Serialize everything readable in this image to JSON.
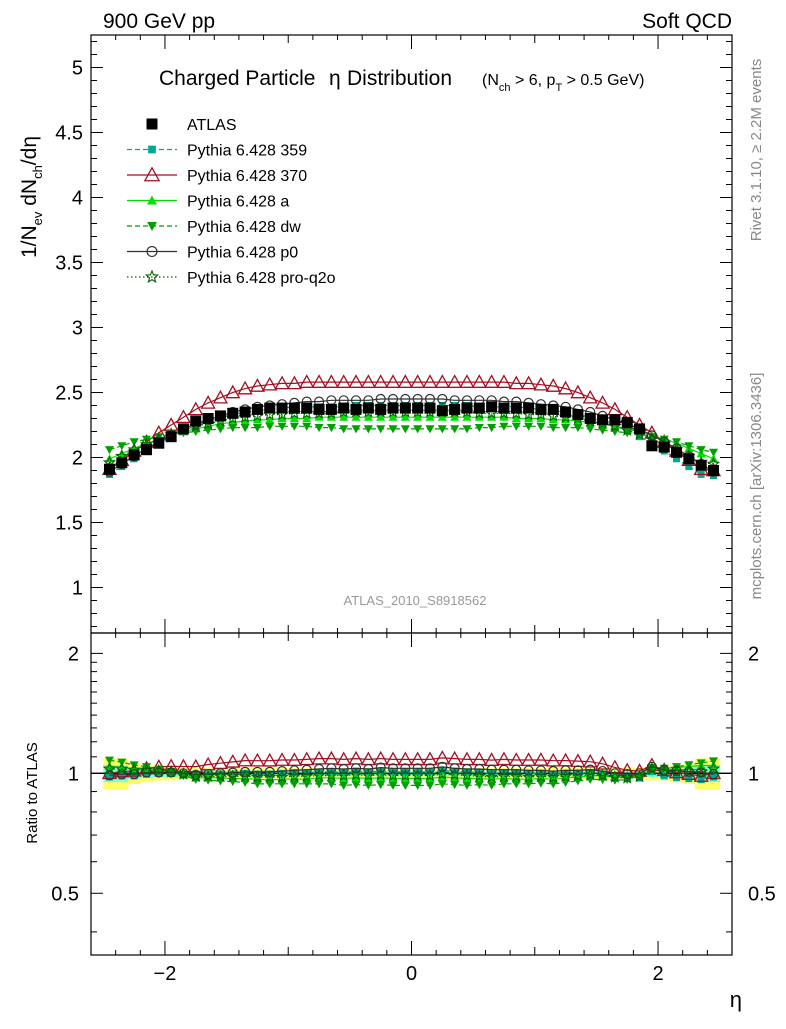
{
  "header": {
    "left": "900 GeV pp",
    "right": "Soft QCD"
  },
  "side": {
    "rivet": "Rivet 3.1.10, ≥ 2.2M events",
    "mcplots": "mcplots.cern.ch [arXiv:1306.3436]"
  },
  "chart_data": [
    {
      "type": "scatter",
      "panel": "main",
      "title_main": "Charged Particle",
      "title_eta": "η",
      "title_rest": "Distribution",
      "title_cut": "(N_ch > 6, p_T > 0.5 GeV)",
      "ylabel": "1/N_ev dN_ch/dη",
      "analysis_label": "ATLAS_2010_S8918562",
      "xlim": [
        -2.6,
        2.6
      ],
      "ylim": [
        0.65,
        5.25
      ],
      "y_ticks": [
        1,
        1.5,
        2,
        2.5,
        3,
        3.5,
        4,
        4.5,
        5
      ],
      "y_tick_labels": [
        "1",
        "1.5",
        "2",
        "2.5",
        "3",
        "3.5",
        "4",
        "4.5",
        "5"
      ],
      "eta_bins": [
        -2.45,
        -2.35,
        -2.25,
        -2.15,
        -2.05,
        -1.95,
        -1.85,
        -1.75,
        -1.65,
        -1.55,
        -1.45,
        -1.35,
        -1.25,
        -1.15,
        -1.05,
        -0.95,
        -0.85,
        -0.75,
        -0.65,
        -0.55,
        -0.45,
        -0.35,
        -0.25,
        -0.15,
        -0.05,
        0.05,
        0.15,
        0.25,
        0.35,
        0.45,
        0.55,
        0.65,
        0.75,
        0.85,
        0.95,
        1.05,
        1.15,
        1.25,
        1.35,
        1.45,
        1.55,
        1.65,
        1.75,
        1.85,
        1.95,
        2.05,
        2.15,
        2.25,
        2.35,
        2.45
      ],
      "series": [
        {
          "name": "ATLAS",
          "color": "#000000",
          "marker": "square",
          "line": "none",
          "values": [
            1.91,
            1.96,
            2.02,
            2.06,
            2.11,
            2.16,
            2.22,
            2.28,
            2.3,
            2.32,
            2.34,
            2.35,
            2.37,
            2.38,
            2.38,
            2.38,
            2.38,
            2.37,
            2.37,
            2.38,
            2.37,
            2.38,
            2.37,
            2.38,
            2.38,
            2.38,
            2.38,
            2.36,
            2.37,
            2.38,
            2.38,
            2.39,
            2.38,
            2.38,
            2.38,
            2.37,
            2.37,
            2.35,
            2.33,
            2.3,
            2.29,
            2.29,
            2.27,
            2.22,
            2.09,
            2.08,
            2.04,
            1.99,
            1.94,
            1.9
          ]
        },
        {
          "name": "Pythia 6.428 359",
          "color": "#00a88f",
          "marker": "small-square",
          "line": "dashed",
          "values": [
            1.87,
            1.93,
            1.99,
            2.05,
            2.11,
            2.16,
            2.21,
            2.25,
            2.28,
            2.31,
            2.33,
            2.35,
            2.36,
            2.37,
            2.38,
            2.39,
            2.39,
            2.39,
            2.39,
            2.39,
            2.4,
            2.4,
            2.4,
            2.4,
            2.4,
            2.4,
            2.4,
            2.4,
            2.4,
            2.4,
            2.39,
            2.39,
            2.39,
            2.39,
            2.38,
            2.37,
            2.36,
            2.35,
            2.33,
            2.31,
            2.28,
            2.25,
            2.21,
            2.16,
            2.11,
            2.05,
            1.99,
            1.93,
            1.87,
            1.86
          ]
        },
        {
          "name": "Pythia 6.428 370",
          "color": "#a50f21",
          "marker": "open-triangle",
          "line": "solid",
          "values": [
            1.91,
            1.98,
            2.05,
            2.12,
            2.19,
            2.25,
            2.31,
            2.37,
            2.42,
            2.46,
            2.5,
            2.53,
            2.55,
            2.56,
            2.57,
            2.57,
            2.58,
            2.58,
            2.58,
            2.58,
            2.58,
            2.58,
            2.58,
            2.58,
            2.58,
            2.58,
            2.58,
            2.58,
            2.58,
            2.58,
            2.58,
            2.58,
            2.58,
            2.57,
            2.57,
            2.56,
            2.55,
            2.53,
            2.5,
            2.46,
            2.42,
            2.37,
            2.31,
            2.25,
            2.19,
            2.12,
            2.05,
            1.98,
            1.91,
            1.9
          ]
        },
        {
          "name": "Pythia 6.428 a",
          "color": "#00e000",
          "marker": "triangle",
          "line": "solid",
          "values": [
            1.99,
            2.03,
            2.07,
            2.11,
            2.14,
            2.17,
            2.2,
            2.22,
            2.24,
            2.26,
            2.27,
            2.28,
            2.29,
            2.29,
            2.3,
            2.3,
            2.3,
            2.31,
            2.31,
            2.31,
            2.31,
            2.31,
            2.31,
            2.31,
            2.31,
            2.31,
            2.31,
            2.31,
            2.31,
            2.31,
            2.31,
            2.31,
            2.31,
            2.3,
            2.3,
            2.3,
            2.29,
            2.29,
            2.28,
            2.27,
            2.26,
            2.24,
            2.22,
            2.2,
            2.17,
            2.14,
            2.11,
            2.07,
            2.03,
            1.99
          ]
        },
        {
          "name": "Pythia 6.428 dw",
          "color": "#00a000",
          "marker": "down-triangle",
          "line": "dashed",
          "values": [
            2.06,
            2.09,
            2.12,
            2.14,
            2.16,
            2.18,
            2.19,
            2.2,
            2.21,
            2.22,
            2.23,
            2.23,
            2.23,
            2.24,
            2.24,
            2.24,
            2.24,
            2.23,
            2.23,
            2.22,
            2.22,
            2.22,
            2.22,
            2.22,
            2.22,
            2.22,
            2.22,
            2.22,
            2.22,
            2.22,
            2.23,
            2.23,
            2.24,
            2.24,
            2.24,
            2.24,
            2.23,
            2.23,
            2.23,
            2.22,
            2.21,
            2.2,
            2.19,
            2.18,
            2.16,
            2.14,
            2.12,
            2.09,
            2.06,
            2.04
          ]
        },
        {
          "name": "Pythia 6.428 p0",
          "color": "#303030",
          "marker": "open-circle",
          "line": "solid",
          "values": [
            1.89,
            1.95,
            2.01,
            2.07,
            2.12,
            2.17,
            2.22,
            2.26,
            2.29,
            2.32,
            2.35,
            2.37,
            2.39,
            2.4,
            2.41,
            2.42,
            2.43,
            2.43,
            2.44,
            2.44,
            2.44,
            2.44,
            2.45,
            2.45,
            2.45,
            2.45,
            2.45,
            2.45,
            2.44,
            2.44,
            2.44,
            2.44,
            2.43,
            2.43,
            2.42,
            2.41,
            2.4,
            2.39,
            2.37,
            2.35,
            2.32,
            2.29,
            2.26,
            2.22,
            2.17,
            2.12,
            2.07,
            2.01,
            1.95,
            1.89
          ]
        },
        {
          "name": "Pythia 6.428 pro-q2o",
          "color": "#006400",
          "marker": "open-star",
          "line": "dotted",
          "values": [
            1.96,
            2.01,
            2.06,
            2.1,
            2.14,
            2.18,
            2.21,
            2.24,
            2.26,
            2.28,
            2.3,
            2.31,
            2.32,
            2.33,
            2.33,
            2.34,
            2.34,
            2.34,
            2.34,
            2.35,
            2.35,
            2.35,
            2.35,
            2.35,
            2.35,
            2.35,
            2.35,
            2.35,
            2.35,
            2.35,
            2.34,
            2.34,
            2.34,
            2.34,
            2.33,
            2.33,
            2.32,
            2.31,
            2.3,
            2.28,
            2.26,
            2.24,
            2.21,
            2.18,
            2.14,
            2.1,
            2.06,
            2.01,
            1.96,
            1.95
          ]
        }
      ]
    },
    {
      "type": "scatter",
      "panel": "ratio",
      "ylabel": "Ratio to ATLAS",
      "xlabel": "η",
      "xlim": [
        -2.6,
        2.6
      ],
      "ylim": [
        0.35,
        2.25
      ],
      "y_ticks": [
        0.5,
        1,
        2
      ],
      "y_tick_labels": [
        "0.5",
        "1",
        "2"
      ],
      "x_ticks": [
        -2,
        0,
        2
      ],
      "x_tick_labels": [
        "−2",
        "0",
        "2"
      ],
      "band_colors": {
        "inner": "#7fffd4",
        "outer": "#ffff66"
      },
      "band_half_widths": [
        0.09,
        0.09,
        0.06,
        0.05,
        0.04,
        0.04,
        0.03,
        0.03,
        0.03,
        0.03,
        0.03,
        0.03,
        0.03,
        0.03,
        0.03,
        0.03,
        0.03,
        0.03,
        0.03,
        0.03,
        0.03,
        0.03,
        0.03,
        0.03,
        0.03,
        0.03,
        0.03,
        0.03,
        0.03,
        0.03,
        0.03,
        0.03,
        0.03,
        0.03,
        0.03,
        0.03,
        0.03,
        0.03,
        0.03,
        0.03,
        0.03,
        0.03,
        0.03,
        0.03,
        0.04,
        0.04,
        0.05,
        0.06,
        0.09,
        0.09
      ]
    }
  ]
}
